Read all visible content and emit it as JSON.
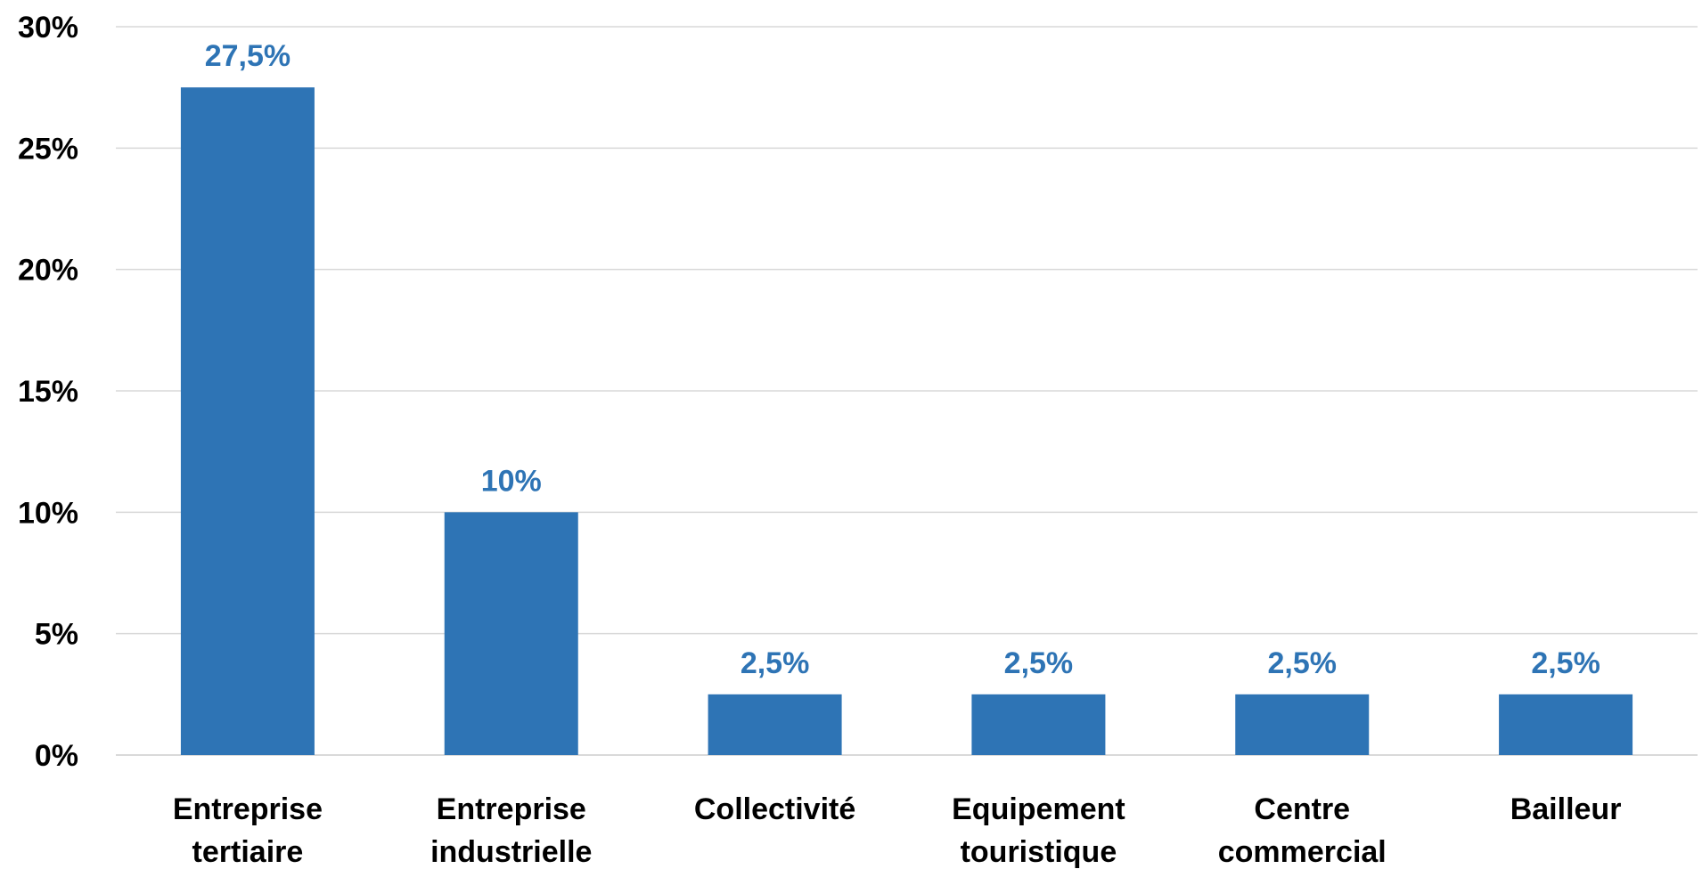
{
  "chart_data": {
    "type": "bar",
    "categories": [
      [
        "Entreprise",
        "tertiaire"
      ],
      [
        "Entreprise",
        "industrielle"
      ],
      [
        "Collectivité"
      ],
      [
        "Equipement",
        "touristique"
      ],
      [
        "Centre",
        "commercial"
      ],
      [
        "Bailleur"
      ]
    ],
    "values": [
      27.5,
      10,
      2.5,
      2.5,
      2.5,
      2.5
    ],
    "value_labels": [
      "27,5%",
      "10%",
      "2,5%",
      "2,5%",
      "2,5%",
      "2,5%"
    ],
    "y_ticks": [
      {
        "value": 0,
        "label": "0%"
      },
      {
        "value": 5,
        "label": "5%"
      },
      {
        "value": 10,
        "label": "10%"
      },
      {
        "value": 15,
        "label": "15%"
      },
      {
        "value": 20,
        "label": "20%"
      },
      {
        "value": 25,
        "label": "25%"
      },
      {
        "value": 30,
        "label": "30%"
      }
    ],
    "ylim": [
      0,
      30
    ],
    "grid": true,
    "bar_color": "#2e74b5",
    "label_color": "#2e74b5"
  }
}
